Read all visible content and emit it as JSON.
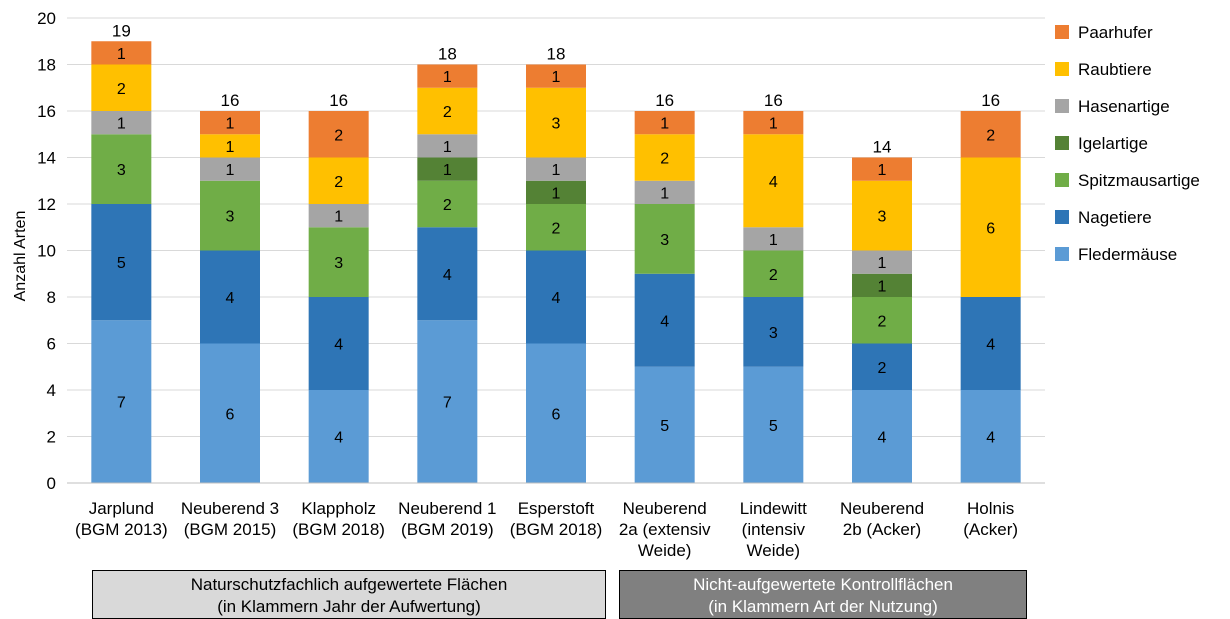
{
  "chart_data": {
    "type": "bar",
    "stacked": true,
    "ylabel": "Anzahl Arten",
    "ylim": [
      0,
      20
    ],
    "yticks": [
      0,
      2,
      4,
      6,
      8,
      10,
      12,
      14,
      16,
      18,
      20
    ],
    "grid": true,
    "legend_position": "right",
    "categories": [
      [
        "Jarplund",
        "(BGM 2013)"
      ],
      [
        "Neuberend 3",
        "(BGM 2015)"
      ],
      [
        "Klappholz",
        "(BGM 2018)"
      ],
      [
        "Neuberend 1",
        "(BGM 2019)"
      ],
      [
        "Esperstoft",
        "(BGM 2018)"
      ],
      [
        "Neuberend",
        "2a (extensiv",
        "Weide)"
      ],
      [
        "Lindewitt",
        "(intensiv",
        "Weide)"
      ],
      [
        "Neuberend",
        "2b (Acker)"
      ],
      [
        "Holnis",
        "(Acker)"
      ]
    ],
    "totals": [
      19,
      16,
      16,
      18,
      18,
      16,
      16,
      14,
      16
    ],
    "series": [
      {
        "name": "Fledermäuse",
        "color": "#5b9bd5",
        "values": [
          7,
          6,
          4,
          7,
          6,
          5,
          5,
          4,
          4
        ]
      },
      {
        "name": "Nagetiere",
        "color": "#2e75b6",
        "values": [
          5,
          4,
          4,
          4,
          4,
          4,
          3,
          2,
          4
        ]
      },
      {
        "name": "Spitzmausartige",
        "color": "#70ad47",
        "values": [
          3,
          3,
          3,
          2,
          2,
          3,
          2,
          2,
          0
        ]
      },
      {
        "name": "Igelartige",
        "color": "#548235",
        "values": [
          0,
          0,
          0,
          1,
          1,
          0,
          0,
          1,
          0
        ]
      },
      {
        "name": "Hasenartige",
        "color": "#a5a5a5",
        "values": [
          1,
          1,
          1,
          1,
          1,
          1,
          1,
          1,
          0
        ]
      },
      {
        "name": "Raubtiere",
        "color": "#ffc000",
        "values": [
          2,
          1,
          2,
          2,
          3,
          2,
          4,
          3,
          6
        ]
      },
      {
        "name": "Paarhufer",
        "color": "#ed7d31",
        "values": [
          1,
          1,
          2,
          1,
          1,
          1,
          1,
          1,
          2
        ]
      }
    ],
    "groups": [
      {
        "lines": [
          "Naturschutzfachlich aufgewertete Flächen",
          "(in Klammern Jahr der Aufwertung)"
        ],
        "categories": [
          0,
          4
        ]
      },
      {
        "lines": [
          "Nicht-aufgewertete Kontrollflächen",
          "(in Klammern Art der Nutzung)"
        ],
        "categories": [
          5,
          8
        ]
      }
    ]
  }
}
